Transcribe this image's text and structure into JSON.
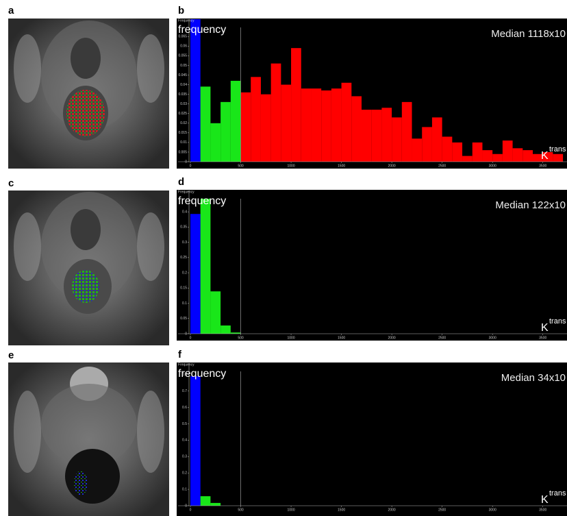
{
  "images": [
    {
      "label": "a"
    },
    {
      "label": "c"
    },
    {
      "label": "e"
    }
  ],
  "chart_data": [
    {
      "type": "histogram",
      "panel_label": "b",
      "axis_caption": "Frequency",
      "y_label": "frequency",
      "annotation": "Median 1118x10",
      "x_label": "K",
      "x_label_sup": "trans",
      "bins": [
        0,
        100,
        200,
        300,
        400,
        500,
        600,
        700,
        800,
        900,
        1000,
        1100,
        1200,
        1300,
        1400,
        1500,
        1600,
        1700,
        1800,
        1900,
        2000,
        2100,
        2200,
        2300,
        2400,
        2500,
        2600,
        2700,
        2800,
        2900,
        3000,
        3100,
        3200,
        3300,
        3400,
        3500,
        3600,
        3700
      ],
      "values": [
        0.074,
        0.039,
        0.02,
        0.031,
        0.042,
        0.036,
        0.044,
        0.035,
        0.051,
        0.04,
        0.059,
        0.038,
        0.038,
        0.037,
        0.038,
        0.041,
        0.034,
        0.027,
        0.027,
        0.028,
        0.023,
        0.031,
        0.012,
        0.018,
        0.023,
        0.013,
        0.01,
        0.003,
        0.01,
        0.006,
        0.004,
        0.011,
        0.007,
        0.006,
        0.004,
        0.005,
        0.004
      ],
      "bar_colors": [
        "#0000ff",
        "#19e619",
        "#19e619",
        "#19e619",
        "#19e619",
        "#ff0000",
        "#ff0000",
        "#ff0000",
        "#ff0000",
        "#ff0000",
        "#ff0000",
        "#ff0000",
        "#ff0000",
        "#ff0000",
        "#ff0000",
        "#ff0000",
        "#ff0000",
        "#ff0000",
        "#ff0000",
        "#ff0000",
        "#ff0000",
        "#ff0000",
        "#ff0000",
        "#ff0000",
        "#ff0000",
        "#ff0000",
        "#ff0000",
        "#ff0000",
        "#ff0000",
        "#ff0000",
        "#ff0000",
        "#ff0000",
        "#ff0000",
        "#ff0000",
        "#ff0000",
        "#ff0000",
        "#ff0000"
      ],
      "xlim": [
        -136,
        3740
      ],
      "ylim": [
        0,
        0.074
      ],
      "xticks": [
        0,
        500,
        1000,
        1500,
        2000,
        2500,
        3000,
        3500
      ],
      "yticks": [
        0,
        0.005,
        0.01,
        0.015,
        0.02,
        0.025,
        0.03,
        0.035,
        0.04,
        0.045,
        0.05,
        0.055,
        0.06,
        0.065
      ],
      "vline": 500
    },
    {
      "type": "histogram",
      "panel_label": "d",
      "axis_caption": "Frequency",
      "y_label": "frequency",
      "annotation": "Median 122x10",
      "x_label": "K",
      "x_label_sup": "trans",
      "bins": [
        0,
        100,
        200,
        300,
        400,
        500
      ],
      "values": [
        0.393,
        0.443,
        0.139,
        0.027,
        0.004
      ],
      "bar_colors": [
        "#0000ff",
        "#19e619",
        "#19e619",
        "#19e619",
        "#19e619"
      ],
      "xlim": [
        -136,
        3740
      ],
      "ylim": [
        0,
        0.47
      ],
      "xticks": [
        0,
        500,
        1000,
        1500,
        2000,
        2500,
        3000,
        3500
      ],
      "yticks": [
        0,
        0.05,
        0.1,
        0.15,
        0.2,
        0.25,
        0.3,
        0.35,
        0.4
      ],
      "vline": 500
    },
    {
      "type": "histogram",
      "panel_label": "f",
      "axis_caption": "Frequency",
      "y_label": "frequency",
      "annotation": "Median 34x10",
      "x_label": "K",
      "x_label_sup": "trans",
      "bins": [
        0,
        100,
        200,
        300
      ],
      "values": [
        0.79,
        0.058,
        0.017
      ],
      "bar_colors": [
        "#0000ff",
        "#19e619",
        "#19e619"
      ],
      "xlim": [
        -136,
        3740
      ],
      "ylim": [
        0,
        0.87
      ],
      "xticks": [
        0,
        500,
        1000,
        1500,
        2000,
        2500,
        3000,
        3500
      ],
      "yticks": [
        0,
        0.1,
        0.2,
        0.3,
        0.4,
        0.5,
        0.6,
        0.7,
        0.8
      ],
      "vline": 500
    }
  ]
}
